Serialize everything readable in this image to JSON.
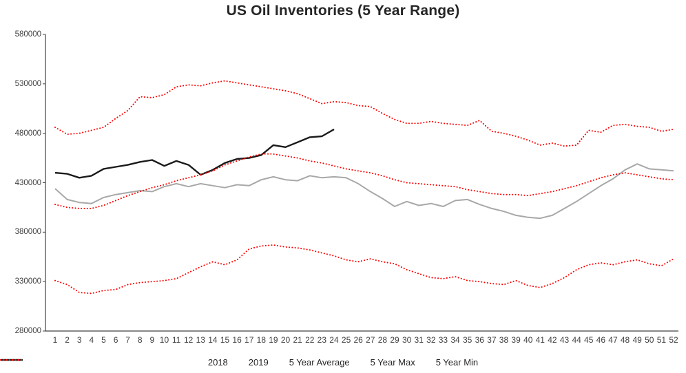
{
  "chart_data": {
    "type": "line",
    "title": "US Oil Inventories (5 Year Range)",
    "xlabel": "",
    "ylabel": "",
    "xlim": [
      1,
      52
    ],
    "ylim": [
      280000,
      580000
    ],
    "grid": false,
    "legend_position": "bottom",
    "y_ticks": [
      280000,
      330000,
      380000,
      430000,
      480000,
      530000,
      580000
    ],
    "x_ticks": [
      1,
      2,
      3,
      4,
      5,
      6,
      7,
      8,
      9,
      10,
      11,
      12,
      13,
      14,
      15,
      16,
      17,
      18,
      19,
      20,
      21,
      22,
      23,
      24,
      25,
      26,
      27,
      28,
      29,
      30,
      31,
      32,
      33,
      34,
      35,
      36,
      37,
      38,
      39,
      40,
      41,
      42,
      43,
      44,
      45,
      46,
      47,
      48,
      49,
      50,
      51,
      52
    ],
    "x": [
      1,
      2,
      3,
      4,
      5,
      6,
      7,
      8,
      9,
      10,
      11,
      12,
      13,
      14,
      15,
      16,
      17,
      18,
      19,
      20,
      21,
      22,
      23,
      24,
      25,
      26,
      27,
      28,
      29,
      30,
      31,
      32,
      33,
      34,
      35,
      36,
      37,
      38,
      39,
      40,
      41,
      42,
      43,
      44,
      45,
      46,
      47,
      48,
      49,
      50,
      51,
      52
    ],
    "series": [
      {
        "name": "2018",
        "color": "#a8a8a8",
        "line_style": "solid",
        "values": [
          424000,
          413000,
          410000,
          409000,
          415000,
          418000,
          420000,
          422000,
          421000,
          426000,
          429000,
          426000,
          429000,
          427000,
          425000,
          428000,
          427000,
          433000,
          436000,
          433000,
          432000,
          437000,
          435000,
          436000,
          435000,
          429000,
          421000,
          414000,
          406000,
          411000,
          407000,
          409000,
          406000,
          412000,
          413000,
          408000,
          404000,
          401000,
          397000,
          395000,
          394000,
          397000,
          404000,
          411000,
          419000,
          427000,
          434000,
          443000,
          449000,
          444000,
          443000,
          442000
        ]
      },
      {
        "name": "2019",
        "color": "#1a1a1a",
        "line_style": "solid",
        "values": [
          440000,
          439000,
          435000,
          437000,
          444000,
          446000,
          448000,
          451000,
          453000,
          447000,
          452000,
          448000,
          438000,
          443000,
          450000,
          454000,
          455000,
          458000,
          468000,
          466000,
          471000,
          476000,
          477000,
          484000
        ]
      },
      {
        "name": "5 Year Average",
        "color": "#ff0000",
        "line_style": "dotted",
        "values": [
          408000,
          405000,
          404000,
          404000,
          407000,
          412000,
          417000,
          421000,
          425000,
          428000,
          432000,
          435000,
          438000,
          442000,
          448000,
          452000,
          456000,
          459000,
          459000,
          457000,
          455000,
          452000,
          450000,
          447000,
          444000,
          442000,
          440000,
          437000,
          433000,
          430000,
          429000,
          428000,
          427000,
          426000,
          423000,
          421000,
          419000,
          418000,
          418000,
          417000,
          419000,
          421000,
          424000,
          427000,
          431000,
          435000,
          438000,
          440000,
          438000,
          436000,
          434000,
          433000
        ]
      },
      {
        "name": "5 Year Max",
        "color": "#ff0000",
        "line_style": "dotted",
        "values": [
          486000,
          479000,
          480000,
          483000,
          486000,
          495000,
          503000,
          517000,
          516000,
          519000,
          527000,
          529000,
          528000,
          531000,
          533000,
          531000,
          529000,
          527000,
          525000,
          523000,
          520000,
          515000,
          510000,
          512000,
          511000,
          508000,
          507000,
          500000,
          494000,
          490000,
          490000,
          492000,
          490000,
          489000,
          488000,
          493000,
          482000,
          480000,
          477000,
          473000,
          468000,
          470000,
          467000,
          468000,
          483000,
          481000,
          488000,
          489000,
          487000,
          486000,
          482000,
          484000
        ]
      },
      {
        "name": "5 Year Min",
        "color": "#ff0000",
        "line_style": "dotted",
        "values": [
          331000,
          327000,
          319000,
          318000,
          321000,
          322000,
          327000,
          329000,
          330000,
          331000,
          333000,
          339000,
          345000,
          350000,
          347000,
          352000,
          363000,
          366000,
          367000,
          365000,
          364000,
          362000,
          359000,
          356000,
          352000,
          350000,
          353000,
          350000,
          348000,
          342000,
          338000,
          334000,
          333000,
          335000,
          331000,
          330000,
          328000,
          327000,
          331000,
          326000,
          324000,
          328000,
          334000,
          342000,
          347000,
          349000,
          347000,
          350000,
          352000,
          348000,
          346000,
          353000
        ]
      }
    ],
    "axis_color": "#404040"
  }
}
